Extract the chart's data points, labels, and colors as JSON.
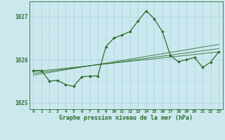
{
  "x": [
    0,
    1,
    2,
    3,
    4,
    5,
    6,
    7,
    8,
    9,
    10,
    11,
    12,
    13,
    14,
    15,
    16,
    17,
    18,
    19,
    20,
    21,
    22,
    23
  ],
  "y_main": [
    1025.75,
    1025.75,
    1025.5,
    1025.52,
    1025.42,
    1025.38,
    1025.6,
    1025.62,
    1025.62,
    1026.3,
    1026.5,
    1026.57,
    1026.65,
    1026.9,
    1027.13,
    1026.95,
    1026.65,
    1026.1,
    1025.95,
    1026.0,
    1026.05,
    1025.82,
    1025.94,
    1026.18
  ],
  "y_trend1": [
    1025.72,
    1025.74,
    1025.76,
    1025.78,
    1025.8,
    1025.82,
    1025.84,
    1025.86,
    1025.88,
    1025.9,
    1025.92,
    1025.94,
    1025.96,
    1025.98,
    1026.0,
    1026.02,
    1026.04,
    1026.06,
    1026.08,
    1026.1,
    1026.12,
    1026.14,
    1026.16,
    1026.18
  ],
  "y_trend2": [
    1025.68,
    1025.705,
    1025.73,
    1025.755,
    1025.78,
    1025.805,
    1025.83,
    1025.855,
    1025.88,
    1025.905,
    1025.93,
    1025.955,
    1025.98,
    1026.005,
    1026.03,
    1026.055,
    1026.08,
    1026.105,
    1026.13,
    1026.155,
    1026.18,
    1026.205,
    1026.23,
    1026.255
  ],
  "y_trend3": [
    1025.64,
    1025.671,
    1025.702,
    1025.733,
    1025.764,
    1025.795,
    1025.826,
    1025.857,
    1025.888,
    1025.919,
    1025.95,
    1025.981,
    1026.012,
    1026.043,
    1026.074,
    1026.105,
    1026.136,
    1026.167,
    1026.198,
    1026.229,
    1026.26,
    1026.291,
    1026.322,
    1026.353
  ],
  "line_color": "#2d6e2d",
  "bg_color": "#cce8ef",
  "grid_color_major": "#aacfdb",
  "grid_color_minor": "#b8d8e2",
  "text_color": "#2d6e2d",
  "ylim": [
    1024.85,
    1027.35
  ],
  "yticks": [
    1025,
    1026,
    1027
  ],
  "xlabel": "Graphe pression niveau de la mer (hPa)"
}
